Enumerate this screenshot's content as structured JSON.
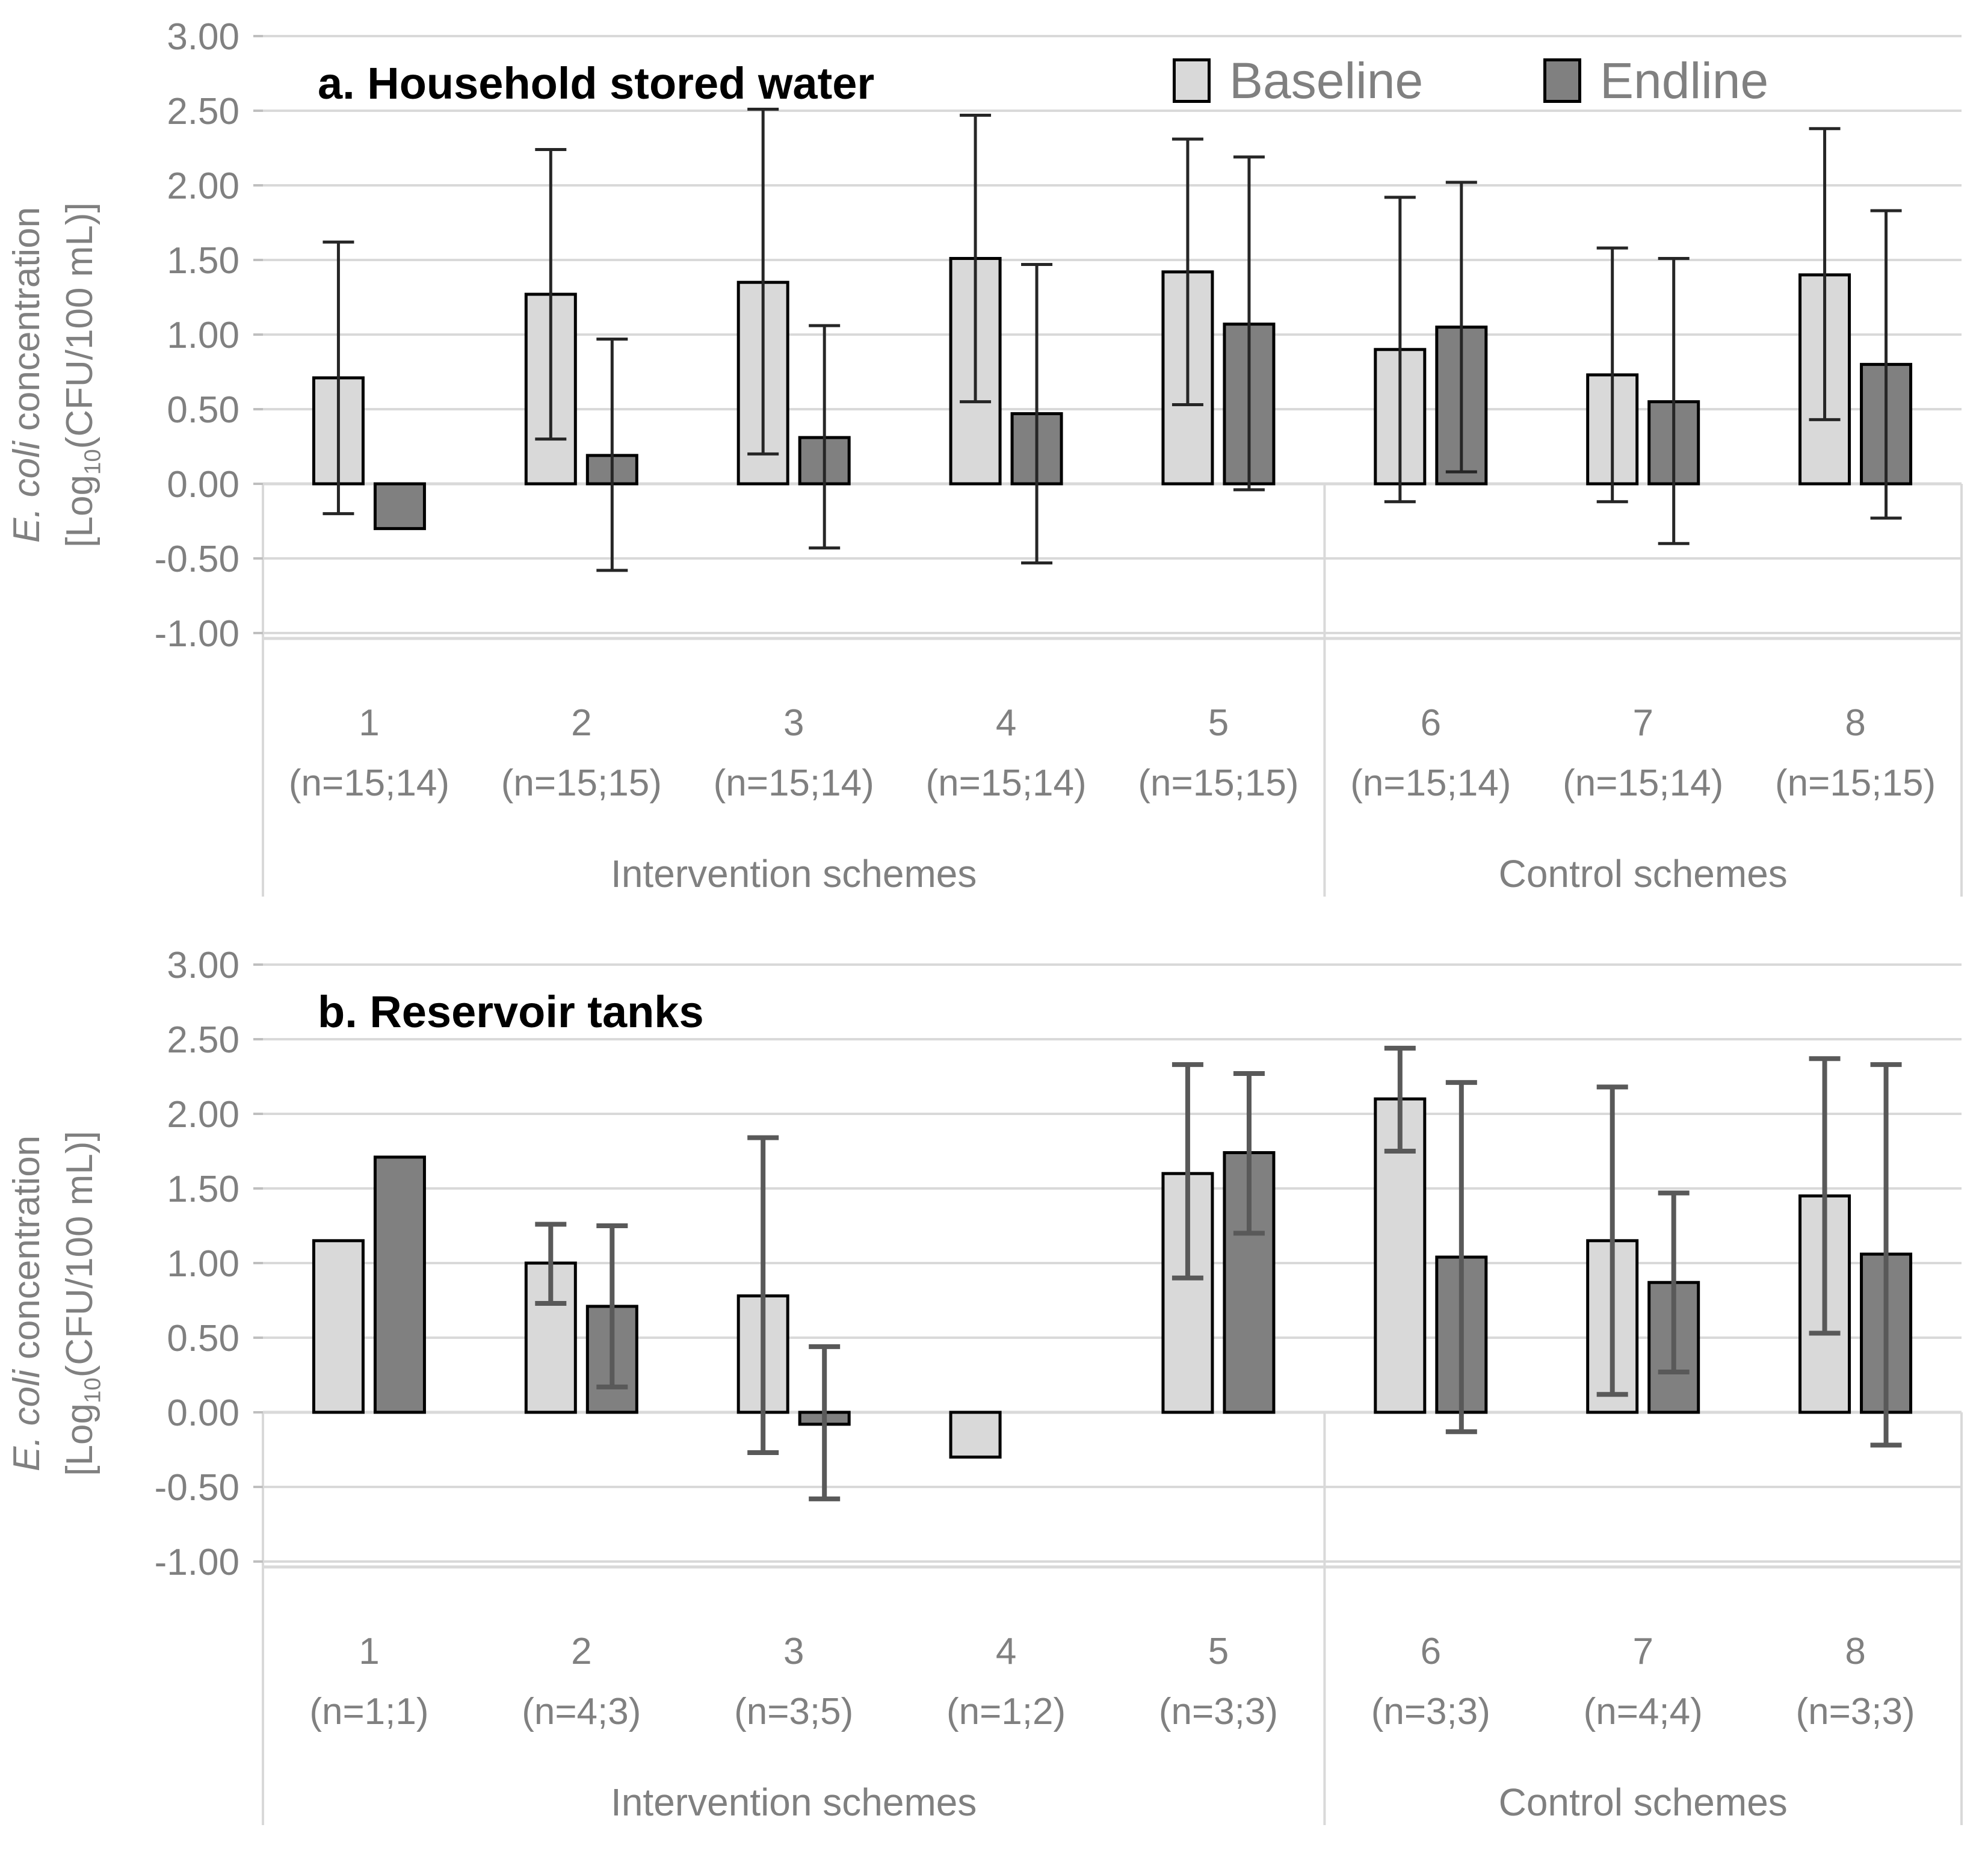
{
  "figure": {
    "kind": "two-panel grouped bar chart with error bars",
    "background": "#ffffff"
  },
  "legend": {
    "items": [
      {
        "label": "Baseline",
        "color": "#d9d9d9"
      },
      {
        "label": "Endline",
        "color": "#808080"
      }
    ]
  },
  "y_axis": {
    "title_line1_italic": "E. coli",
    "title_line1_rest": " concentration",
    "title_line2_prefix": "[Log",
    "title_line2_sub": "10",
    "title_line2_suffix": "(CFU/100 mL)]",
    "tick_labels": [
      "3.00",
      "2.50",
      "2.00",
      "1.50",
      "1.00",
      "0.50",
      "0.00",
      "-0.50",
      "-1.00"
    ]
  },
  "chart_data": [
    {
      "type": "bar",
      "panel": "a",
      "title": "a. Household stored water",
      "ylabel": "E. coli concentration [Log10(CFU/100 mL)]",
      "ylim": [
        -1.0,
        3.0
      ],
      "ytick_step": 0.5,
      "grid": true,
      "legend_position": "top-right-inside",
      "categories": [
        "1",
        "2",
        "3",
        "4",
        "5",
        "6",
        "7",
        "8"
      ],
      "category_sublabels": [
        "(n=15;14)",
        "(n=15;15)",
        "(n=15;14)",
        "(n=15;14)",
        "(n=15;15)",
        "(n=15;14)",
        "(n=15;14)",
        "(n=15;15)"
      ],
      "groups": [
        {
          "label": "Intervention schemes",
          "first": 0,
          "last": 4
        },
        {
          "label": "Control schemes",
          "first": 5,
          "last": 7
        }
      ],
      "series": [
        {
          "name": "Baseline",
          "color": "#d9d9d9",
          "values": [
            0.71,
            1.27,
            1.35,
            1.51,
            1.42,
            0.9,
            0.73,
            1.4
          ],
          "error_low": [
            -0.2,
            0.3,
            0.2,
            0.55,
            0.53,
            -0.12,
            -0.12,
            0.43
          ],
          "error_high": [
            1.62,
            2.24,
            2.51,
            2.47,
            2.31,
            1.92,
            1.58,
            2.38
          ]
        },
        {
          "name": "Endline",
          "color": "#808080",
          "values": [
            -0.3,
            0.19,
            0.31,
            0.47,
            1.07,
            1.05,
            0.55,
            0.8
          ],
          "error_low": [
            null,
            -0.58,
            -0.43,
            -0.53,
            -0.04,
            0.08,
            -0.4,
            -0.23
          ],
          "error_high": [
            null,
            0.97,
            1.06,
            1.47,
            2.19,
            2.02,
            1.51,
            1.83
          ]
        }
      ]
    },
    {
      "type": "bar",
      "panel": "b",
      "title": "b. Reservoir tanks",
      "ylabel": "E. coli concentration [Log10(CFU/100 mL)]",
      "ylim": [
        -1.0,
        3.0
      ],
      "ytick_step": 0.5,
      "grid": true,
      "legend_position": "none",
      "categories": [
        "1",
        "2",
        "3",
        "4",
        "5",
        "6",
        "7",
        "8"
      ],
      "category_sublabels": [
        "(n=1;1)",
        "(n=4;3)",
        "(n=3;5)",
        "(n=1;2)",
        "(n=3;3)",
        "(n=3;3)",
        "(n=4;4)",
        "(n=3;3)"
      ],
      "groups": [
        {
          "label": "Intervention schemes",
          "first": 0,
          "last": 4
        },
        {
          "label": "Control schemes",
          "first": 5,
          "last": 7
        }
      ],
      "series": [
        {
          "name": "Baseline",
          "color": "#d9d9d9",
          "values": [
            1.15,
            1.0,
            0.78,
            -0.3,
            1.6,
            2.1,
            1.15,
            1.45
          ],
          "error_low": [
            null,
            0.73,
            -0.27,
            null,
            0.9,
            1.75,
            0.12,
            0.53
          ],
          "error_high": [
            null,
            1.26,
            1.84,
            null,
            2.33,
            2.44,
            2.18,
            2.37
          ]
        },
        {
          "name": "Endline",
          "color": "#808080",
          "values": [
            1.71,
            0.71,
            -0.08,
            null,
            1.74,
            1.04,
            0.87,
            1.06
          ],
          "error_low": [
            null,
            0.17,
            -0.58,
            null,
            1.2,
            -0.13,
            0.27,
            -0.22
          ],
          "error_high": [
            null,
            1.25,
            0.44,
            null,
            2.27,
            2.21,
            1.47,
            2.33
          ]
        }
      ]
    }
  ],
  "style": {
    "grid_color": "#d9d9d9",
    "axis_box_color": "#d9d9d9",
    "tick_mark_color": "#bfbfbf",
    "bar_outline_color": "#000000",
    "error_color_panel_a": "#262626",
    "error_color_panel_b": "#595959",
    "text_color": "#808080",
    "title_color": "#000000"
  }
}
